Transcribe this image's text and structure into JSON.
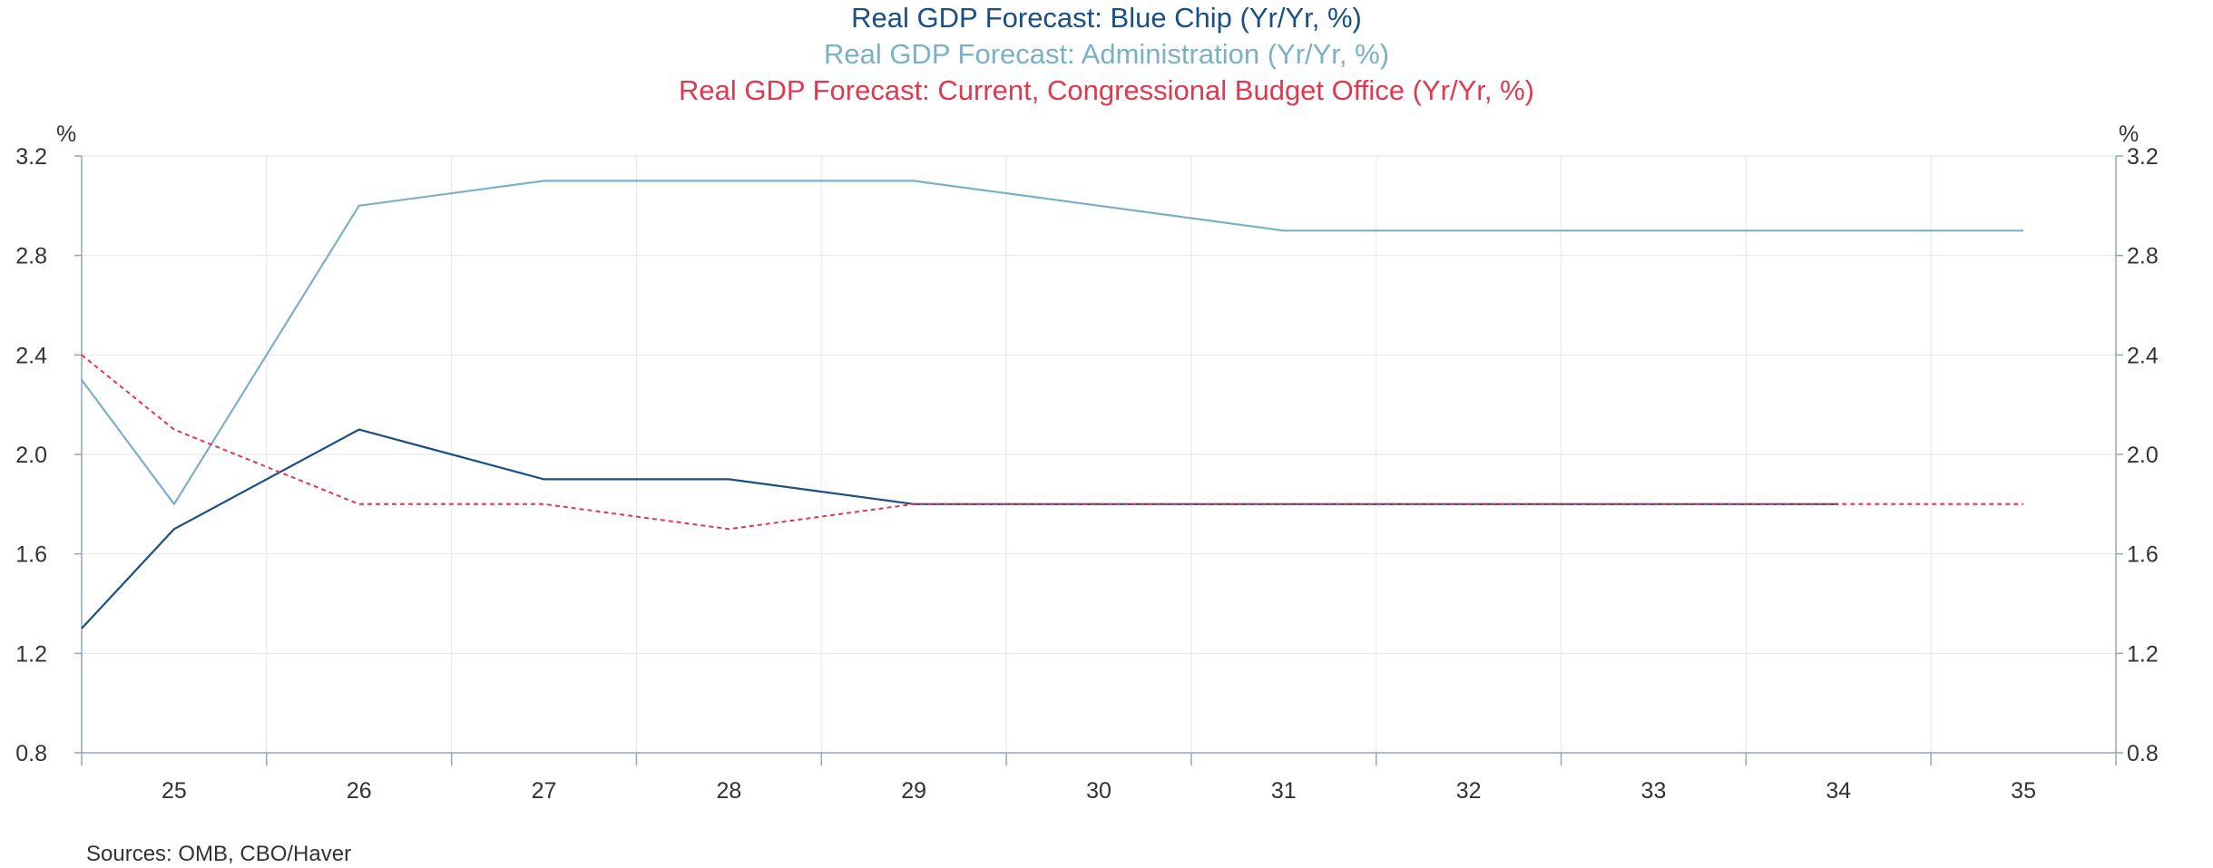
{
  "legend": [
    {
      "label": "Real GDP Forecast: Blue Chip (Yr/Yr, %)",
      "color": "#1a4f85"
    },
    {
      "label": "Real GDP Forecast: Administration (Yr/Yr, %)",
      "color": "#7ab0c8"
    },
    {
      "label": "Real GDP Forecast: Current, Congressional Budget Office (Yr/Yr, %)",
      "color": "#e0384f"
    }
  ],
  "source": "Sources:  OMB, CBO/Haver",
  "chart_data": {
    "type": "line",
    "title": "",
    "xlabel": "",
    "ylabel": "%",
    "ylabel_right": "%",
    "x": [
      "25",
      "26",
      "27",
      "28",
      "29",
      "30",
      "31",
      "32",
      "33",
      "34",
      "35"
    ],
    "x_tick_labels": [
      "25",
      "26",
      "27",
      "28",
      "29",
      "30",
      "31",
      "32",
      "33",
      "34",
      "35"
    ],
    "y_tick_labels": [
      "3.2",
      "2.8",
      "2.4",
      "2.0",
      "1.6",
      "1.2",
      "0.8"
    ],
    "ylim": [
      0.8,
      3.2
    ],
    "grid": true,
    "legend_position": "top-center",
    "series": [
      {
        "name": "Real GDP Forecast: Blue Chip (Yr/Yr, %)",
        "color": "#1a4f85",
        "style": "solid",
        "points": [
          [
            "24.5",
            1.3
          ],
          [
            "25",
            1.7
          ],
          [
            "26",
            2.1
          ],
          [
            "27",
            1.9
          ],
          [
            "28",
            1.9
          ],
          [
            "29",
            1.8
          ],
          [
            "30",
            1.8
          ],
          [
            "31",
            1.8
          ],
          [
            "32",
            1.8
          ],
          [
            "33",
            1.8
          ],
          [
            "34",
            1.8
          ]
        ]
      },
      {
        "name": "Real GDP Forecast: Administration (Yr/Yr, %)",
        "color": "#7ab0c8",
        "style": "solid",
        "points": [
          [
            "24.5",
            2.3
          ],
          [
            "25",
            1.8
          ],
          [
            "26",
            3.0
          ],
          [
            "27",
            3.1
          ],
          [
            "28",
            3.1
          ],
          [
            "29",
            3.1
          ],
          [
            "30",
            3.0
          ],
          [
            "31",
            2.9
          ],
          [
            "32",
            2.9
          ],
          [
            "33",
            2.9
          ],
          [
            "34",
            2.9
          ],
          [
            "35",
            2.9
          ]
        ]
      },
      {
        "name": "Real GDP Forecast: Current, Congressional Budget Office (Yr/Yr, %)",
        "color": "#e0384f",
        "style": "dashed",
        "points": [
          [
            "24.5",
            2.4
          ],
          [
            "25",
            2.1
          ],
          [
            "26",
            1.8
          ],
          [
            "27",
            1.8
          ],
          [
            "28",
            1.7
          ],
          [
            "29",
            1.8
          ],
          [
            "30",
            1.8
          ],
          [
            "31",
            1.8
          ],
          [
            "32",
            1.8
          ],
          [
            "33",
            1.8
          ],
          [
            "34",
            1.8
          ],
          [
            "35",
            1.8
          ]
        ]
      }
    ]
  }
}
